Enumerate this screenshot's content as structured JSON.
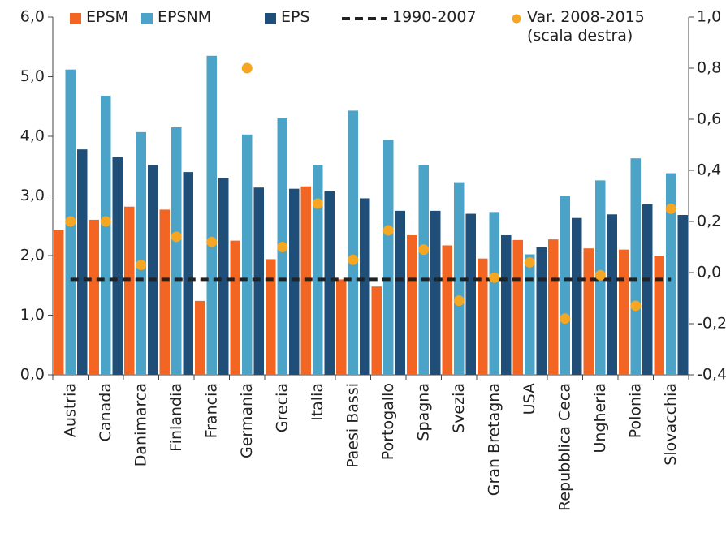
{
  "chart_data": {
    "type": "bar",
    "categories": [
      "Austria",
      "Canada",
      "Danimarca",
      "Finlandia",
      "Francia",
      "Germania",
      "Grecia",
      "Italia",
      "Paesi Bassi",
      "Portogallo",
      "Spagna",
      "Svezia",
      "Gran Bretagna",
      "USA",
      "Repubblica Ceca",
      "Ungheria",
      "Polonia",
      "Slovacchia"
    ],
    "series": [
      {
        "name": "EPSM",
        "type": "bar",
        "color": "#f26522",
        "values": [
          2.43,
          2.6,
          2.82,
          2.77,
          1.24,
          2.25,
          1.94,
          3.16,
          1.6,
          1.48,
          2.34,
          2.17,
          1.95,
          2.26,
          2.27,
          2.12,
          2.1,
          2.0
        ]
      },
      {
        "name": "EPSNM",
        "type": "bar",
        "color": "#4ba3c7",
        "values": [
          5.12,
          4.68,
          4.07,
          4.15,
          5.35,
          4.03,
          4.3,
          3.52,
          4.43,
          3.94,
          3.52,
          3.23,
          2.73,
          2.02,
          3.0,
          3.26,
          3.63,
          3.38
        ]
      },
      {
        "name": "EPS",
        "type": "bar",
        "color": "#1f4e79",
        "values": [
          3.78,
          3.65,
          3.52,
          3.4,
          3.3,
          3.14,
          3.12,
          3.08,
          2.96,
          2.75,
          2.75,
          2.7,
          2.34,
          2.14,
          2.63,
          2.69,
          2.86,
          2.68
        ]
      },
      {
        "name": "1990-2007",
        "type": "line",
        "dashed": true,
        "color": "#222222",
        "values": [
          1.6,
          1.6,
          1.6,
          1.6,
          1.6,
          1.6,
          1.6,
          1.6,
          1.6,
          1.6,
          1.6,
          1.6,
          1.6,
          1.6,
          1.6,
          1.6,
          1.6,
          1.6
        ]
      },
      {
        "name": "Var. 2008-2015 (scala destra)",
        "type": "scatter",
        "axis": "y2",
        "color": "#f5a623",
        "values": [
          0.2,
          0.2,
          0.03,
          0.14,
          0.12,
          0.8,
          0.1,
          0.27,
          0.05,
          0.165,
          0.09,
          -0.11,
          -0.02,
          0.04,
          -0.18,
          -0.01,
          -0.13,
          0.25
        ]
      }
    ],
    "ylim": [
      0,
      6
    ],
    "yticks": [
      {
        "value": 0,
        "label": "0,0"
      },
      {
        "value": 1,
        "label": "1,0"
      },
      {
        "value": 2,
        "label": "2,0"
      },
      {
        "value": 3,
        "label": "3,0"
      },
      {
        "value": 4,
        "label": "4,0"
      },
      {
        "value": 5,
        "label": "5,0"
      },
      {
        "value": 6,
        "label": "6,0"
      }
    ],
    "y2lim": [
      -0.4,
      1.0
    ],
    "y2ticks": [
      {
        "value": -0.4,
        "label": "-0,4"
      },
      {
        "value": -0.2,
        "label": "-0,2"
      },
      {
        "value": 0,
        "label": "0,0"
      },
      {
        "value": 0.2,
        "label": "0,2"
      },
      {
        "value": 0.4,
        "label": "0,4"
      },
      {
        "value": 0.6,
        "label": "0,6"
      },
      {
        "value": 0.8,
        "label": "0,8"
      },
      {
        "value": 1.0,
        "label": "1,0"
      }
    ],
    "grid": false
  }
}
